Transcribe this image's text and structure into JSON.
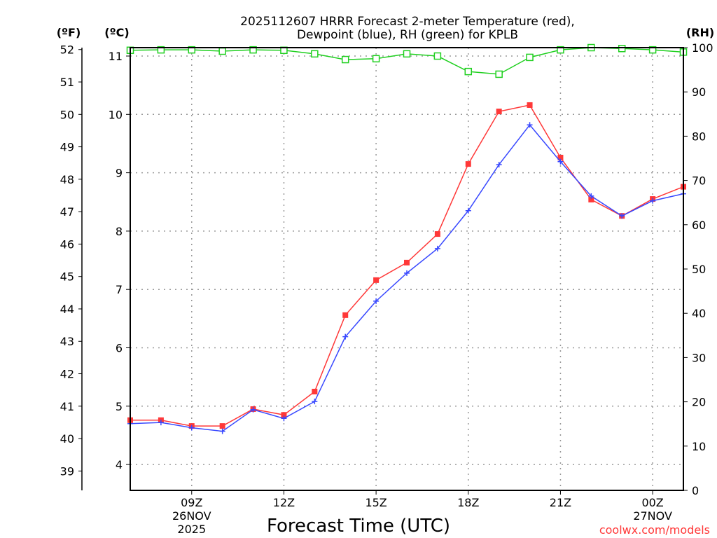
{
  "chart_data": {
    "type": "line",
    "title_line1": "2025112607 HRRR Forecast 2-meter Temperature (red),",
    "title_line2": "Dewpoint (blue), RH (green) for KPLB",
    "xlabel": "Forecast Time (UTC)",
    "y_left_outer_label": "(ºF)",
    "y_left_label": "(ºC)",
    "y_right_label": "(RH)",
    "credit": "coolwx.com/models",
    "x_hours": [
      7,
      8,
      9,
      10,
      11,
      12,
      13,
      14,
      15,
      16,
      17,
      18,
      19,
      20,
      21,
      22,
      23,
      24,
      25
    ],
    "x_ticks": [
      {
        "hour": 9,
        "label": "09Z",
        "sub1": "26NOV",
        "sub2": "2025"
      },
      {
        "hour": 12,
        "label": "12Z",
        "sub1": "",
        "sub2": ""
      },
      {
        "hour": 15,
        "label": "15Z",
        "sub1": "",
        "sub2": ""
      },
      {
        "hour": 18,
        "label": "18Z",
        "sub1": "",
        "sub2": ""
      },
      {
        "hour": 21,
        "label": "21Z",
        "sub1": "",
        "sub2": ""
      },
      {
        "hour": 24,
        "label": "00Z",
        "sub1": "27NOV",
        "sub2": ""
      }
    ],
    "celsius_ticks": [
      "4",
      "5",
      "6",
      "7",
      "8",
      "9",
      "10",
      "11"
    ],
    "fahrenheit_ticks": [
      "39",
      "40",
      "41",
      "42",
      "43",
      "44",
      "45",
      "46",
      "47",
      "48",
      "49",
      "50",
      "51",
      "52"
    ],
    "rh_ticks": [
      "0",
      "10",
      "20",
      "30",
      "40",
      "50",
      "60",
      "70",
      "80",
      "90",
      "100"
    ],
    "ylim_celsius": [
      3.6,
      11.15
    ],
    "ylim_rh": [
      0,
      100
    ],
    "grid": true,
    "series": [
      {
        "name": "Temperature",
        "color": "#ff3838",
        "marker": "filled-square",
        "values": [
          4.76,
          4.76,
          4.66,
          4.66,
          4.95,
          4.85,
          5.25,
          6.56,
          7.16,
          7.46,
          7.95,
          9.15,
          10.05,
          10.16,
          9.26,
          8.54,
          8.26,
          8.55,
          8.76
        ]
      },
      {
        "name": "Dewpoint",
        "color": "#3848ff",
        "marker": "plus",
        "values": [
          4.7,
          4.72,
          4.63,
          4.57,
          4.94,
          4.79,
          5.08,
          6.19,
          6.8,
          7.28,
          7.7,
          8.35,
          9.14,
          9.82,
          9.19,
          8.6,
          8.26,
          8.52,
          8.64
        ]
      },
      {
        "name": "RH",
        "color": "#20d020",
        "marker": "open-square",
        "values": [
          99.4,
          99.5,
          99.5,
          99.2,
          99.5,
          99.4,
          98.6,
          97.3,
          97.5,
          98.6,
          98.1,
          94.6,
          94.0,
          97.8,
          99.5,
          100,
          99.8,
          99.5,
          99.0
        ]
      }
    ]
  }
}
